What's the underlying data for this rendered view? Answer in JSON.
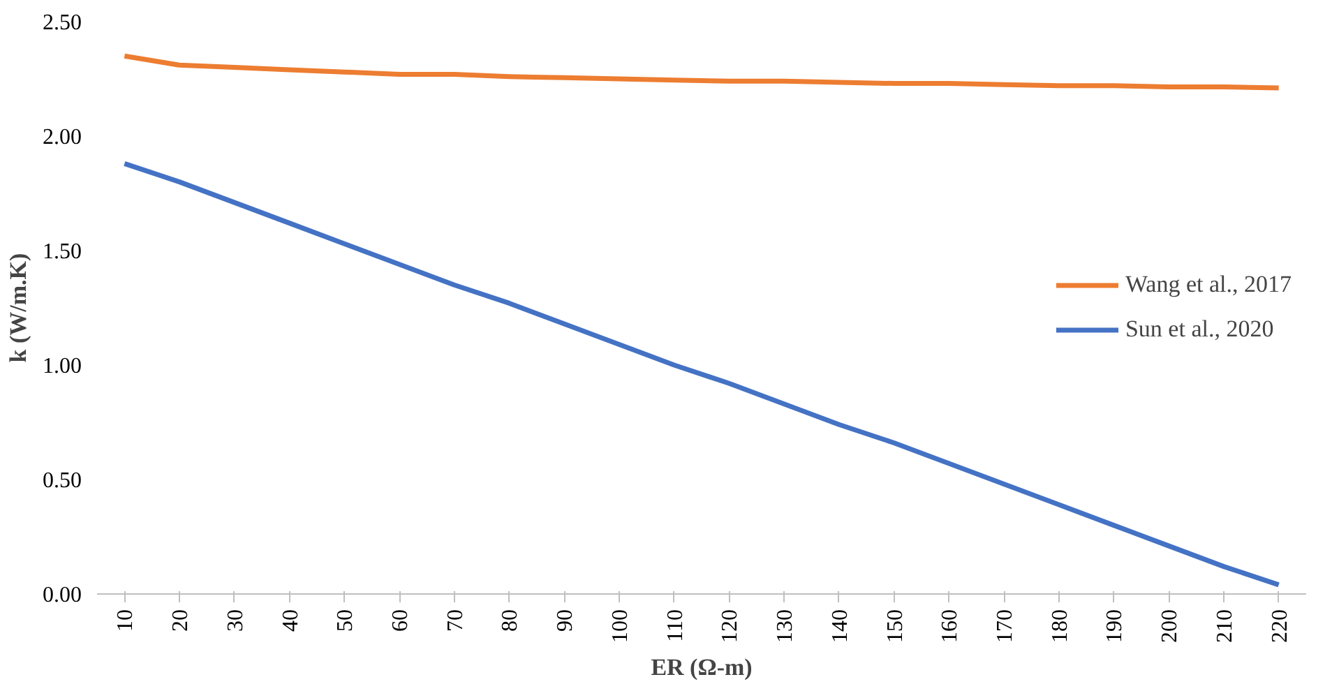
{
  "chart_data": {
    "type": "line",
    "xlabel": "ER (Ω-m)",
    "ylabel": "k (W/m.K)",
    "categories": [
      "10",
      "20",
      "30",
      "40",
      "50",
      "60",
      "70",
      "80",
      "90",
      "100",
      "110",
      "120",
      "130",
      "140",
      "150",
      "160",
      "170",
      "180",
      "190",
      "200",
      "210",
      "220"
    ],
    "series": [
      {
        "name": "Wang et al., 2017",
        "color": "#ed7d31",
        "values": [
          2.35,
          2.31,
          2.3,
          2.29,
          2.28,
          2.27,
          2.27,
          2.26,
          2.255,
          2.25,
          2.245,
          2.24,
          2.24,
          2.235,
          2.23,
          2.23,
          2.225,
          2.22,
          2.22,
          2.215,
          2.215,
          2.21
        ]
      },
      {
        "name": "Sun et al., 2020",
        "color": "#4472c4",
        "values": [
          1.88,
          1.8,
          1.71,
          1.62,
          1.53,
          1.44,
          1.35,
          1.27,
          1.18,
          1.09,
          1.0,
          0.92,
          0.83,
          0.74,
          0.66,
          0.57,
          0.48,
          0.39,
          0.3,
          0.21,
          0.12,
          0.04
        ]
      }
    ],
    "ylim": [
      0,
      2.5
    ],
    "yticks": [
      {
        "value": 0,
        "label": "0.00"
      },
      {
        "value": 0.5,
        "label": "0.50"
      },
      {
        "value": 1,
        "label": "1.00"
      },
      {
        "value": 1.5,
        "label": "1.50"
      },
      {
        "value": 2,
        "label": "2.00"
      },
      {
        "value": 2.5,
        "label": "2.50"
      }
    ],
    "grid": false,
    "legend": "right",
    "marker": "none",
    "line_style": "solid"
  }
}
